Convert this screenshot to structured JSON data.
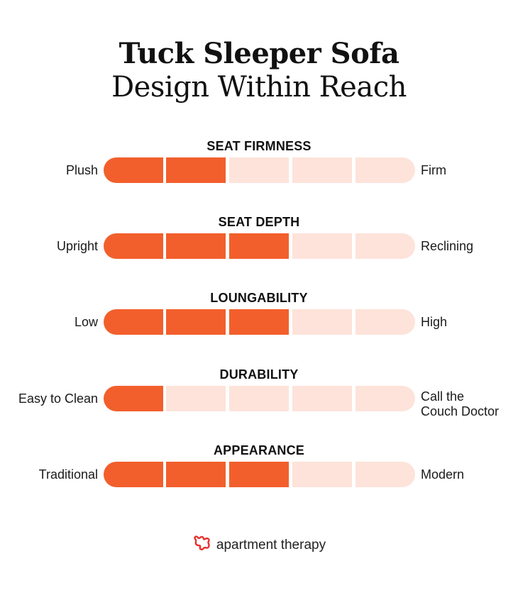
{
  "header": {
    "title_line1": "Tuck Sleeper Sofa",
    "title_line2": "Design Within Reach"
  },
  "colors": {
    "filled": "#F25F2C",
    "empty": "#FDE3DA",
    "logo": "#E8312B"
  },
  "chart_data": {
    "type": "bar",
    "title": "Tuck Sleeper Sofa — Design Within Reach",
    "scale_max": 5,
    "categories": [
      "SEAT FIRMNESS",
      "SEAT DEPTH",
      "LOUNGABILITY",
      "DURABILITY",
      "APPEARANCE"
    ],
    "values": [
      2,
      3,
      3,
      1,
      3
    ],
    "rows": [
      {
        "heading": "SEAT FIRMNESS",
        "left": "Plush",
        "right": "Firm",
        "value": 2
      },
      {
        "heading": "SEAT DEPTH",
        "left": "Upright",
        "right": "Reclining",
        "value": 3
      },
      {
        "heading": "LOUNGABILITY",
        "left": "Low",
        "right": "High",
        "value": 3
      },
      {
        "heading": "DURABILITY",
        "left": "Easy to Clean",
        "right": "Call the Couch Doctor",
        "right_line1": "Call the",
        "right_line2": "Couch Doctor",
        "value": 1
      },
      {
        "heading": "APPEARANCE",
        "left": "Traditional",
        "right": "Modern",
        "value": 3
      }
    ]
  },
  "footer": {
    "brand": "apartment therapy",
    "logo_icon": "apartment-therapy-squiggle-icon"
  }
}
